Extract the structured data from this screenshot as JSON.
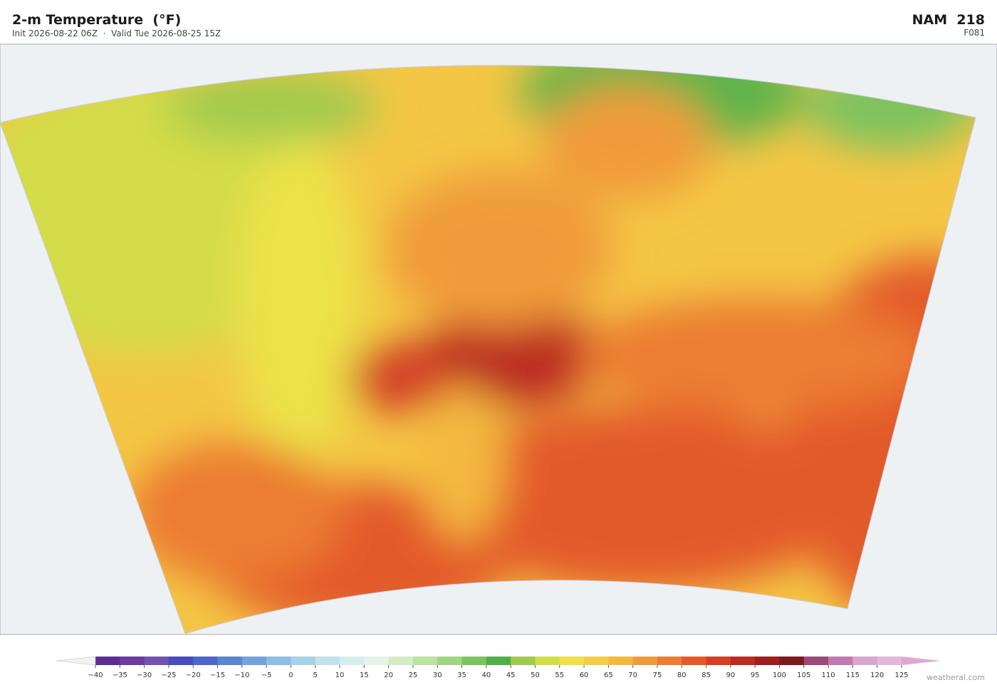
{
  "header": {
    "title": "2-m Temperature  (°F)",
    "subtitle": "Init 2026-08-22 06Z  ·  Valid Tue 2026-08-25 15Z",
    "model": "NAM  218",
    "forecast_hour": "F081"
  },
  "colorbar": {
    "under_color": "#f2f2f2",
    "over_color": "#dcaad2",
    "colors": [
      "#5d2e92",
      "#6a3d9f",
      "#7452ad",
      "#4a4bbd",
      "#4f66c9",
      "#5c85d0",
      "#76a2d8",
      "#8fbee1",
      "#a8d1e6",
      "#c2e1ec",
      "#d6edf0",
      "#e5f3e8",
      "#d4ecc5",
      "#bbe2a0",
      "#a0d683",
      "#7cc35f",
      "#52ae4a",
      "#a0cb4e",
      "#d2dd47",
      "#eee04b",
      "#f5cd46",
      "#f4b840",
      "#f09b3b",
      "#ec7d33",
      "#e35a2a",
      "#d33f25",
      "#bb2b22",
      "#a01e1f",
      "#7e1a1f",
      "#9b4a7a",
      "#c27aae",
      "#d8a6cf",
      "#e2b8da"
    ],
    "ticks": [
      {
        "value": -40,
        "label": "−40"
      },
      {
        "value": -35,
        "label": "−35"
      },
      {
        "value": -30,
        "label": "−30"
      },
      {
        "value": -25,
        "label": "−25"
      },
      {
        "value": -20,
        "label": "−20"
      },
      {
        "value": -15,
        "label": "−15"
      },
      {
        "value": -10,
        "label": "−10"
      },
      {
        "value": -5,
        "label": "−5"
      },
      0,
      5,
      10,
      15,
      20,
      25,
      30,
      35,
      40,
      45,
      50,
      55,
      60,
      65,
      70,
      75,
      80,
      85,
      90,
      95,
      100,
      105,
      110,
      115,
      120,
      125
    ]
  },
  "credit": "weatherai.com"
}
